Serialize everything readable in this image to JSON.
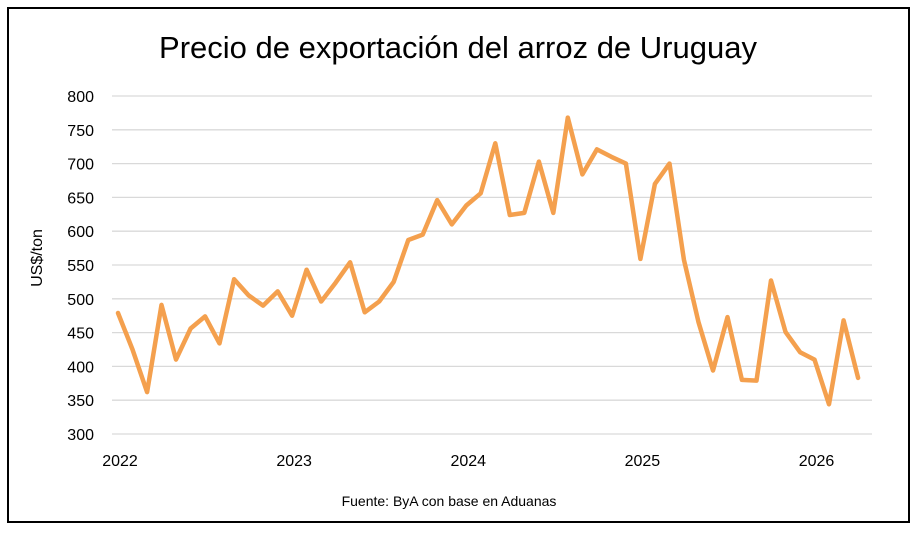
{
  "chart_data": {
    "type": "line",
    "title": "Precio de exportación del arroz de Uruguay",
    "ylabel": "US$/ton",
    "xlabel": "",
    "source": "Fuente: ByA con base en Aduanas",
    "ylim": [
      300,
      800
    ],
    "yticks": [
      300,
      350,
      400,
      450,
      500,
      550,
      600,
      650,
      700,
      750,
      800
    ],
    "xlim": [
      2022,
      2026.33
    ],
    "xticks": [
      "2022",
      "2023",
      "2024",
      "2025",
      "2026"
    ],
    "grid": true,
    "line_color": "#F4A04E",
    "series": [
      {
        "x": [
          2022.0,
          2022.083,
          2022.167,
          2022.25,
          2022.333,
          2022.417,
          2022.5,
          2022.583,
          2022.667,
          2022.75,
          2022.833,
          2022.917,
          2023.0,
          2023.083,
          2023.167,
          2023.25,
          2023.333,
          2023.417,
          2023.5,
          2023.583,
          2023.667,
          2023.75,
          2023.833,
          2023.917,
          2024.0,
          2024.083,
          2024.167,
          2024.25,
          2024.333,
          2024.417,
          2024.5,
          2024.583,
          2024.667,
          2024.75,
          2024.833,
          2024.917,
          2025.0,
          2025.083,
          2025.167,
          2025.25,
          2025.333,
          2025.417,
          2025.5,
          2025.583,
          2025.667,
          2025.75,
          2025.833,
          2025.917,
          2026.0,
          2026.083,
          2026.167,
          2026.25
        ],
        "values": [
          479,
          425,
          362,
          491,
          410,
          456,
          474,
          434,
          529,
          505,
          490,
          511,
          475,
          543,
          496,
          524,
          554,
          480,
          496,
          525,
          587,
          595,
          646,
          610,
          638,
          656,
          730,
          624,
          627,
          703,
          627,
          768,
          684,
          721,
          710,
          700,
          559,
          670,
          700,
          558,
          466,
          394,
          473,
          380,
          379,
          527,
          451,
          421,
          410,
          344,
          468,
          383
        ]
      }
    ]
  }
}
